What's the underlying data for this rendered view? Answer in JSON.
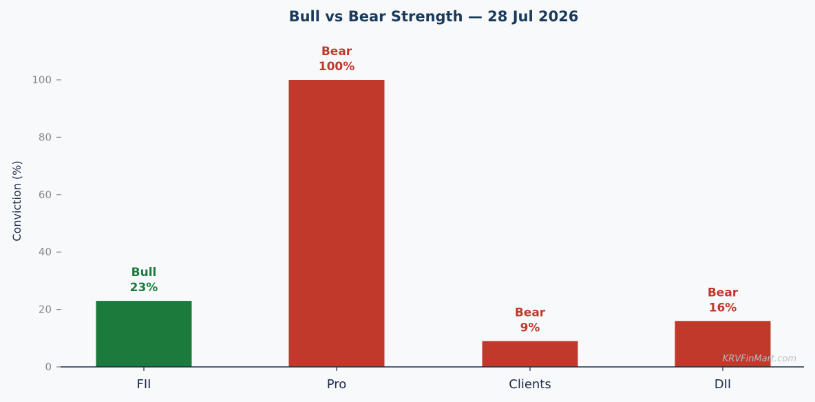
{
  "chart_data": {
    "type": "bar",
    "title": "Bull vs Bear Strength — 28 Jul 2026",
    "xlabel": "",
    "ylabel": "Conviction (%)",
    "categories": [
      "FII",
      "Pro",
      "Clients",
      "DII"
    ],
    "values": [
      23,
      100,
      9,
      16
    ],
    "sentiments": [
      "Bull",
      "Bear",
      "Bear",
      "Bear"
    ],
    "value_labels": [
      "23%",
      "100%",
      "9%",
      "16%"
    ],
    "ylim": [
      0,
      110
    ],
    "yticks": [
      0,
      20,
      40,
      60,
      80,
      100
    ],
    "grid": false,
    "legend": "none"
  },
  "colors": {
    "bull": "#1b7a3c",
    "bear": "#c0392b",
    "title": "#1a3a5c",
    "axis_label": "#1a2b45",
    "tick_label": "#888888",
    "axis_line": "#1a2b45",
    "watermark": "#b8bcc4",
    "background": "#f7f9fb"
  },
  "watermark": "KRVFinMart.com"
}
